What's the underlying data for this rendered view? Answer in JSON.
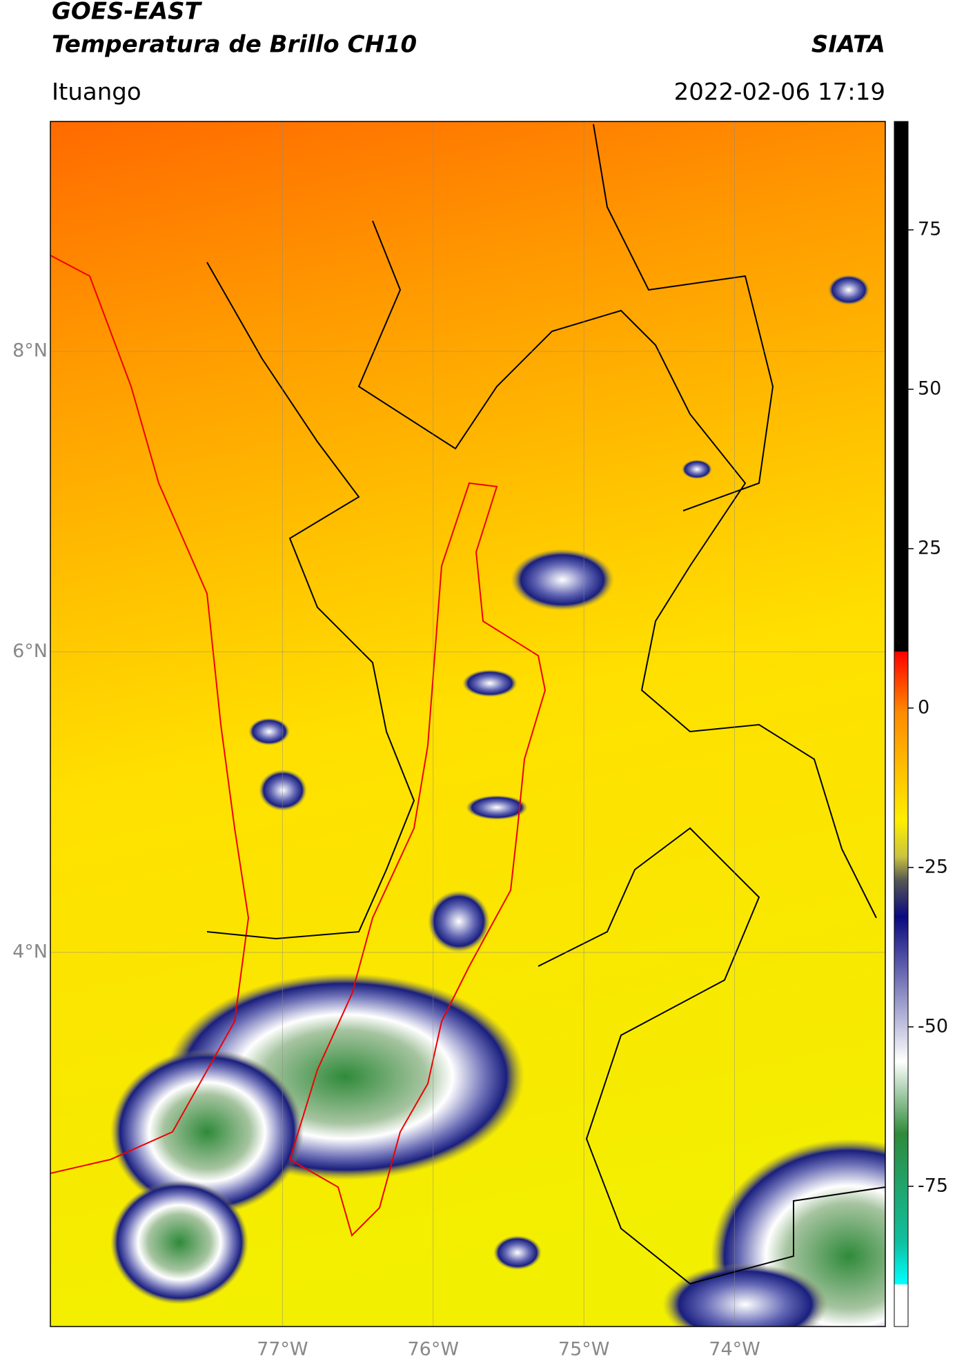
{
  "header": {
    "title_line1": "GOES-EAST",
    "title_line2": "Temperatura de Brillo CH10",
    "brand": "SIATA",
    "location": "Ituango",
    "datetime": "2022-02-06 17:19"
  },
  "map": {
    "xlim": [
      -78.54,
      -73.0
    ],
    "ylim": [
      1.51,
      9.53
    ],
    "xticks": [
      {
        "value": -77,
        "label": "77°W"
      },
      {
        "value": -76,
        "label": "76°W"
      },
      {
        "value": -75,
        "label": "75°W"
      },
      {
        "value": -74,
        "label": "74°W"
      }
    ],
    "yticks": [
      {
        "value": 8,
        "label": "8°N"
      },
      {
        "value": 6,
        "label": "6°N"
      },
      {
        "value": 4,
        "label": "4°N"
      }
    ],
    "grid": true
  },
  "colorbar": {
    "lim": [
      -97,
      92
    ],
    "ticks": [
      75,
      50,
      25,
      0,
      -25,
      -50,
      -75
    ]
  }
}
